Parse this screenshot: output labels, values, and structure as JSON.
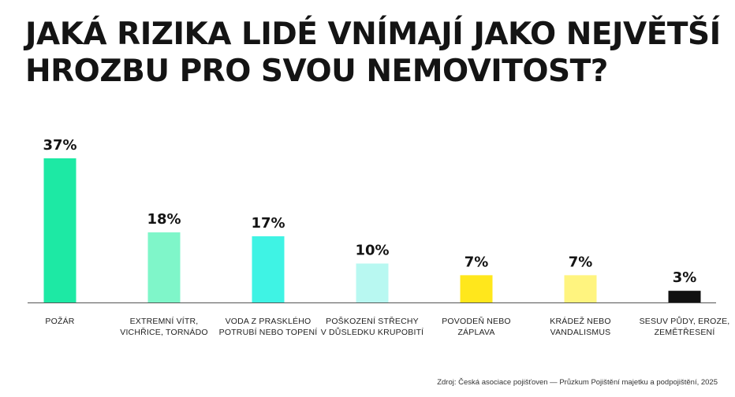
{
  "chart_data": {
    "type": "bar",
    "title": [
      "JAKÁ RIZIKA LIDÉ VNÍMAJÍ JAKO NEJVĚTŠÍ",
      "HROZBU PRO SVOU NEMOVITOST?"
    ],
    "categories": [
      [
        "POŽÁR"
      ],
      [
        "EXTREMNÍ  VÍTR,",
        "VICHŘICE, TORNÁDO"
      ],
      [
        "VODA Z PRASKLÉHO",
        "POTRUBÍ NEBO TOPENÍ"
      ],
      [
        "POŠKOZENÍ STŘECHY",
        "V DŮSLEDKU KRUPOBITÍ"
      ],
      [
        "POVODEŇ NEBO",
        "ZÁPLAVA"
      ],
      [
        "KRÁDEŽ NEBO",
        "VANDALISMUS"
      ],
      [
        "SESUV PŮDY, EROZE,",
        "ZEMĚTŘESENÍ"
      ]
    ],
    "values": [
      37,
      18,
      17,
      10,
      7,
      7,
      3
    ],
    "value_labels": [
      "37%",
      "18%",
      "17%",
      "10%",
      "7%",
      "7%",
      "3%"
    ],
    "colors": [
      "#1de9a4",
      "#7ff6c9",
      "#3ff3e4",
      "#b8f8f1",
      "#ffe71c",
      "#fff47f",
      "#111111"
    ],
    "ylim": [
      0,
      37
    ],
    "grid": false,
    "source": "Zdroj: Česká asociace pojišťoven — Průzkum Pojištění majetku a podpojištění, 2025"
  }
}
